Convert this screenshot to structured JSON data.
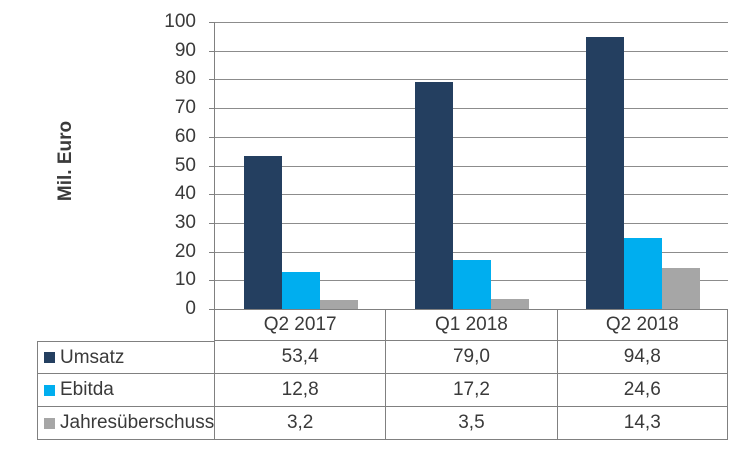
{
  "chart_data": {
    "type": "bar",
    "ylabel": "Mil. Euro",
    "categories": [
      "Q2 2017",
      "Q1 2018",
      "Q2 2018"
    ],
    "series": [
      {
        "name": "Umsatz",
        "color": "#243F60",
        "values": [
          53.4,
          79.0,
          94.8
        ],
        "display": [
          "53,4",
          "79,0",
          "94,8"
        ]
      },
      {
        "name": "Ebitda",
        "color": "#00AEEF",
        "values": [
          12.8,
          17.2,
          24.6
        ],
        "display": [
          "12,8",
          "17,2",
          "24,6"
        ]
      },
      {
        "name": "Jahresüberschuss",
        "color": "#A6A6A6",
        "values": [
          3.2,
          3.5,
          14.3
        ],
        "display": [
          "3,2",
          "3,5",
          "14,3"
        ]
      }
    ],
    "ylim": [
      0,
      100
    ],
    "y_ticks": [
      100,
      90,
      80,
      70,
      60,
      50,
      40,
      30,
      20,
      10,
      0
    ],
    "grid": true,
    "legend_position": "table-rows-left"
  },
  "colors": {
    "background": "#FFFFFF",
    "grid": "#8C8C8C",
    "axis": "#808080",
    "table_border": "#808080",
    "text": "#3A3A3A"
  }
}
